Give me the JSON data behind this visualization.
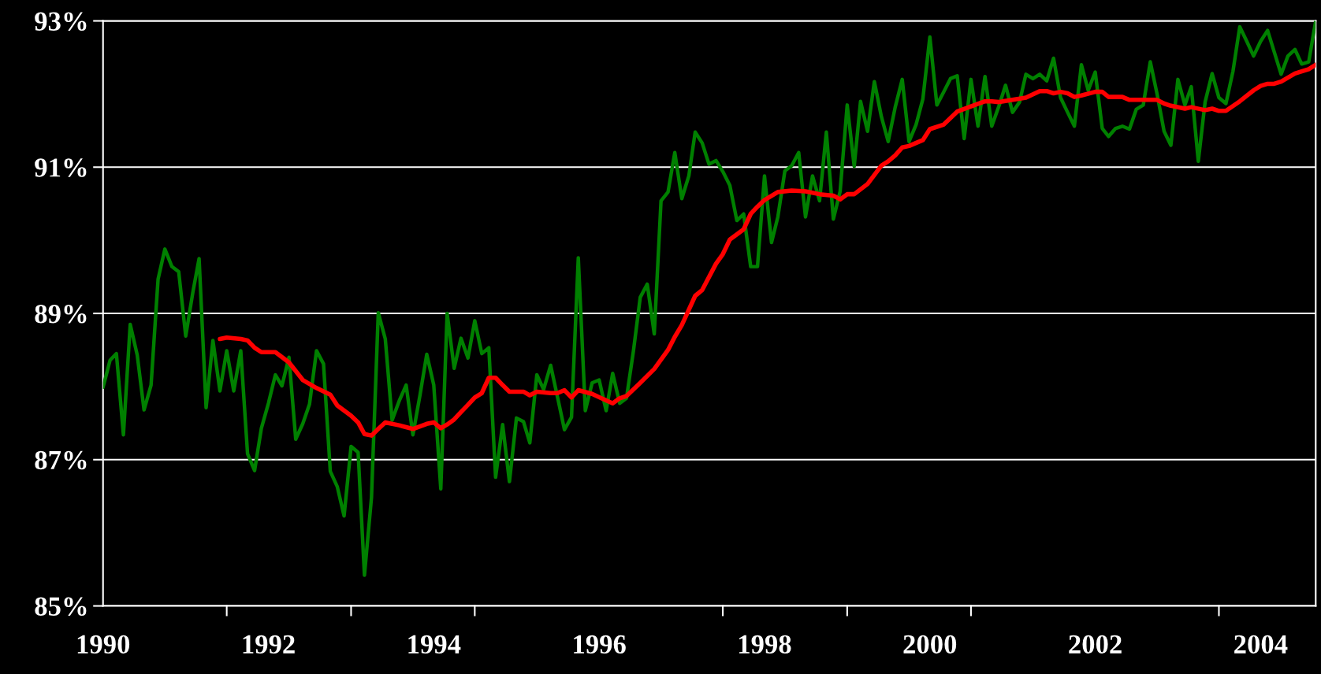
{
  "chart_data": {
    "type": "line",
    "x": [
      "1990-01",
      "1990-02",
      "1990-03",
      "1990-04",
      "1990-05",
      "1990-06",
      "1990-07",
      "1990-08",
      "1990-09",
      "1990-10",
      "1990-11",
      "1990-12",
      "1991-01",
      "1991-02",
      "1991-03",
      "1991-04",
      "1991-05",
      "1991-06",
      "1991-07",
      "1991-08",
      "1991-09",
      "1991-10",
      "1991-11",
      "1991-12",
      "1992-01",
      "1992-02",
      "1992-03",
      "1992-04",
      "1992-05",
      "1992-06",
      "1992-07",
      "1992-08",
      "1992-09",
      "1992-10",
      "1992-11",
      "1992-12",
      "1993-01",
      "1993-02",
      "1993-03",
      "1993-04",
      "1993-05",
      "1993-06",
      "1993-07",
      "1993-08",
      "1993-09",
      "1993-10",
      "1993-11",
      "1993-12",
      "1994-01",
      "1994-02",
      "1994-03",
      "1994-04",
      "1994-05",
      "1994-06",
      "1994-07",
      "1994-08",
      "1994-09",
      "1994-10",
      "1994-11",
      "1994-12",
      "1995-01",
      "1995-02",
      "1995-03",
      "1995-04",
      "1995-05",
      "1995-06",
      "1995-07",
      "1995-08",
      "1995-09",
      "1995-10",
      "1995-11",
      "1995-12",
      "1996-01",
      "1996-02",
      "1996-03",
      "1996-04",
      "1996-05",
      "1996-06",
      "1996-07",
      "1996-08",
      "1996-09",
      "1996-10",
      "1996-11",
      "1996-12",
      "1997-01",
      "1997-02",
      "1997-03",
      "1997-04",
      "1997-05",
      "1997-06",
      "1997-07",
      "1997-08",
      "1997-09",
      "1997-10",
      "1997-11",
      "1997-12",
      "1998-01",
      "1998-02",
      "1998-03",
      "1998-04",
      "1998-05",
      "1998-06",
      "1998-07",
      "1998-08",
      "1998-09",
      "1998-10",
      "1998-11",
      "1998-12",
      "1999-01",
      "1999-02",
      "1999-03",
      "1999-04",
      "1999-05",
      "1999-06",
      "1999-07",
      "1999-08",
      "1999-09",
      "1999-10",
      "1999-11",
      "1999-12",
      "2000-01",
      "2000-02",
      "2000-03",
      "2000-04",
      "2000-05",
      "2000-06",
      "2000-07",
      "2000-08",
      "2000-09",
      "2000-10",
      "2000-11",
      "2000-12",
      "2001-01",
      "2001-02",
      "2001-03",
      "2001-04",
      "2001-05",
      "2001-06",
      "2001-07",
      "2001-08",
      "2001-09",
      "2001-10",
      "2001-11",
      "2001-12",
      "2002-01",
      "2002-02",
      "2002-03",
      "2002-04",
      "2002-05",
      "2002-06",
      "2002-07",
      "2002-08",
      "2002-09",
      "2002-10",
      "2002-11",
      "2002-12",
      "2003-01",
      "2003-02",
      "2003-03",
      "2003-04",
      "2003-05",
      "2003-06",
      "2003-07",
      "2003-08",
      "2003-09",
      "2003-10",
      "2003-11",
      "2003-12",
      "2004-01",
      "2004-02",
      "2004-03",
      "2004-04",
      "2004-05",
      "2004-06",
      "2004-07",
      "2004-08",
      "2004-09"
    ],
    "series": [
      {
        "color": "#008000",
        "values": [
          87.99,
          88.36,
          88.45,
          87.34,
          88.85,
          88.43,
          87.68,
          88.02,
          89.47,
          89.88,
          89.64,
          89.57,
          88.69,
          89.28,
          89.75,
          87.71,
          88.63,
          87.94,
          88.49,
          87.94,
          88.49,
          87.08,
          86.85,
          87.43,
          87.77,
          88.16,
          88.01,
          88.4,
          87.28,
          87.49,
          87.76,
          88.49,
          88.31,
          86.84,
          86.63,
          86.23,
          87.18,
          87.1,
          85.42,
          86.48,
          89.01,
          88.65,
          87.54,
          87.8,
          88.02,
          87.34,
          87.88,
          88.44,
          88.02,
          86.6,
          89.0,
          88.25,
          88.66,
          88.39,
          88.9,
          88.45,
          88.53,
          86.76,
          87.48,
          86.7,
          87.57,
          87.52,
          87.23,
          88.16,
          87.96,
          88.29,
          87.86,
          87.41,
          87.58,
          89.76,
          87.67,
          88.05,
          88.09,
          87.67,
          88.18,
          87.77,
          87.84,
          88.49,
          89.22,
          89.4,
          88.72,
          90.54,
          90.66,
          91.2,
          90.57,
          90.88,
          91.48,
          91.33,
          91.04,
          91.09,
          90.94,
          90.75,
          90.27,
          90.36,
          89.64,
          89.64,
          90.88,
          89.97,
          90.32,
          90.95,
          91.02,
          91.2,
          90.32,
          90.88,
          90.54,
          91.48,
          90.29,
          90.67,
          91.85,
          91.01,
          91.9,
          91.49,
          92.17,
          91.69,
          91.35,
          91.82,
          92.2,
          91.35,
          91.58,
          91.93,
          92.78,
          91.85,
          92.02,
          92.21,
          92.25,
          91.39,
          92.2,
          91.56,
          92.24,
          91.56,
          91.83,
          92.12,
          91.75,
          91.89,
          92.27,
          92.21,
          92.27,
          92.18,
          92.49,
          91.95,
          91.75,
          91.56,
          92.4,
          92.05,
          92.3,
          91.53,
          91.42,
          91.53,
          91.56,
          91.52,
          91.79,
          91.85,
          92.44,
          92.0,
          91.49,
          91.3,
          92.2,
          91.85,
          92.1,
          91.08,
          91.89,
          92.28,
          91.95,
          91.87,
          92.31,
          92.92,
          92.72,
          92.52,
          92.72,
          92.87,
          92.58,
          92.27,
          92.52,
          92.61,
          92.41,
          92.44,
          93.0
        ]
      },
      {
        "color": "#ff0000",
        "x": [
          "1991-06",
          "1991-07",
          "1991-09",
          "1991-10",
          "1991-11",
          "1991-12",
          "1992-02",
          "1992-04",
          "1992-06",
          "1992-08",
          "1992-10",
          "1992-11",
          "1993-01",
          "1993-02",
          "1993-03",
          "1993-04",
          "1993-05",
          "1993-06",
          "1993-08",
          "1993-10",
          "1993-12",
          "1994-01",
          "1994-02",
          "1994-03",
          "1994-04",
          "1994-05",
          "1994-06",
          "1994-07",
          "1994-08",
          "1994-09",
          "1994-10",
          "1994-11",
          "1994-12",
          "1995-01",
          "1995-02",
          "1995-03",
          "1995-04",
          "1995-06",
          "1995-07",
          "1995-08",
          "1995-09",
          "1995-10",
          "1995-12",
          "1996-02",
          "1996-03",
          "1996-04",
          "1996-05",
          "1996-07",
          "1996-09",
          "1996-11",
          "1996-12",
          "1997-01",
          "1997-03",
          "1997-04",
          "1997-06",
          "1997-07",
          "1997-08",
          "1997-10",
          "1997-11",
          "1997-12",
          "1998-01",
          "1998-03",
          "1998-05",
          "1998-07",
          "1998-09",
          "1998-11",
          "1998-12",
          "1999-01",
          "1999-02",
          "1999-04",
          "1999-06",
          "1999-07",
          "1999-08",
          "1999-09",
          "1999-10",
          "1999-12",
          "2000-01",
          "2000-03",
          "2000-04",
          "2000-05",
          "2000-07",
          "2000-09",
          "2000-10",
          "2000-11",
          "2001-01",
          "2001-03",
          "2001-05",
          "2001-06",
          "2001-07",
          "2001-08",
          "2001-09",
          "2001-10",
          "2001-11",
          "2002-01",
          "2002-02",
          "2002-03",
          "2002-05",
          "2002-06",
          "2002-08",
          "2002-10",
          "2002-11",
          "2002-12",
          "2003-02",
          "2003-03",
          "2003-05",
          "2003-06",
          "2003-07",
          "2003-08",
          "2003-10",
          "2003-12",
          "2004-01",
          "2004-02",
          "2004-03",
          "2004-04",
          "2004-06",
          "2004-07",
          "2004-08",
          "2004-09"
        ],
        "values": [
          88.65,
          88.67,
          88.65,
          88.63,
          88.53,
          88.47,
          88.47,
          88.33,
          88.09,
          87.98,
          87.89,
          87.74,
          87.6,
          87.51,
          87.35,
          87.33,
          87.42,
          87.51,
          87.47,
          87.42,
          87.49,
          87.51,
          87.43,
          87.48,
          87.55,
          87.65,
          87.75,
          87.85,
          87.91,
          88.12,
          88.12,
          88.02,
          87.93,
          87.93,
          87.93,
          87.88,
          87.93,
          87.91,
          87.91,
          87.95,
          87.85,
          87.95,
          87.9,
          87.81,
          87.77,
          87.84,
          87.87,
          88.05,
          88.24,
          88.5,
          88.68,
          88.84,
          89.24,
          89.32,
          89.68,
          89.81,
          90.01,
          90.15,
          90.36,
          90.46,
          90.55,
          90.66,
          90.68,
          90.67,
          90.63,
          90.61,
          90.56,
          90.63,
          90.63,
          90.77,
          91.02,
          91.08,
          91.16,
          91.27,
          91.29,
          91.37,
          91.52,
          91.58,
          91.67,
          91.76,
          91.83,
          91.9,
          91.9,
          91.89,
          91.92,
          91.95,
          92.04,
          92.04,
          92.01,
          92.03,
          92.01,
          91.96,
          91.98,
          92.03,
          92.03,
          91.96,
          91.96,
          91.92,
          91.92,
          91.92,
          91.87,
          91.84,
          91.8,
          91.82,
          91.78,
          91.8,
          91.77,
          91.77,
          91.9,
          92.05,
          92.11,
          92.14,
          92.14,
          92.17,
          92.28,
          92.31,
          92.34,
          92.4
        ]
      }
    ],
    "xlim": [
      "1990-01",
      "2004-09"
    ],
    "xticks": [
      {
        "value": "1990",
        "label": "1990"
      },
      {
        "value": "1992",
        "label": "1992"
      },
      {
        "value": "1994",
        "label": "1994"
      },
      {
        "value": "1996",
        "label": "1996"
      },
      {
        "value": "1998",
        "label": "1998"
      },
      {
        "value": "2000",
        "label": "2000"
      },
      {
        "value": "2002",
        "label": "2002"
      },
      {
        "value": "2004",
        "label": "2004"
      },
      {
        "value": "1991-07",
        "label": null
      },
      {
        "value": "1993-01",
        "label": null
      },
      {
        "value": "1994-07",
        "label": null
      },
      {
        "value": "1997-07",
        "label": null
      },
      {
        "value": "1999-01",
        "label": null
      },
      {
        "value": "2000-07",
        "label": null
      },
      {
        "value": "2003-07",
        "label": null
      }
    ],
    "ylim": [
      85,
      93
    ],
    "yticks": [
      {
        "value": 85,
        "label": "85%"
      },
      {
        "value": 87,
        "label": "87%"
      },
      {
        "value": 89,
        "label": "89%"
      },
      {
        "value": 91,
        "label": "91%"
      },
      {
        "value": 93,
        "label": "93%"
      }
    ],
    "grid": "y"
  }
}
